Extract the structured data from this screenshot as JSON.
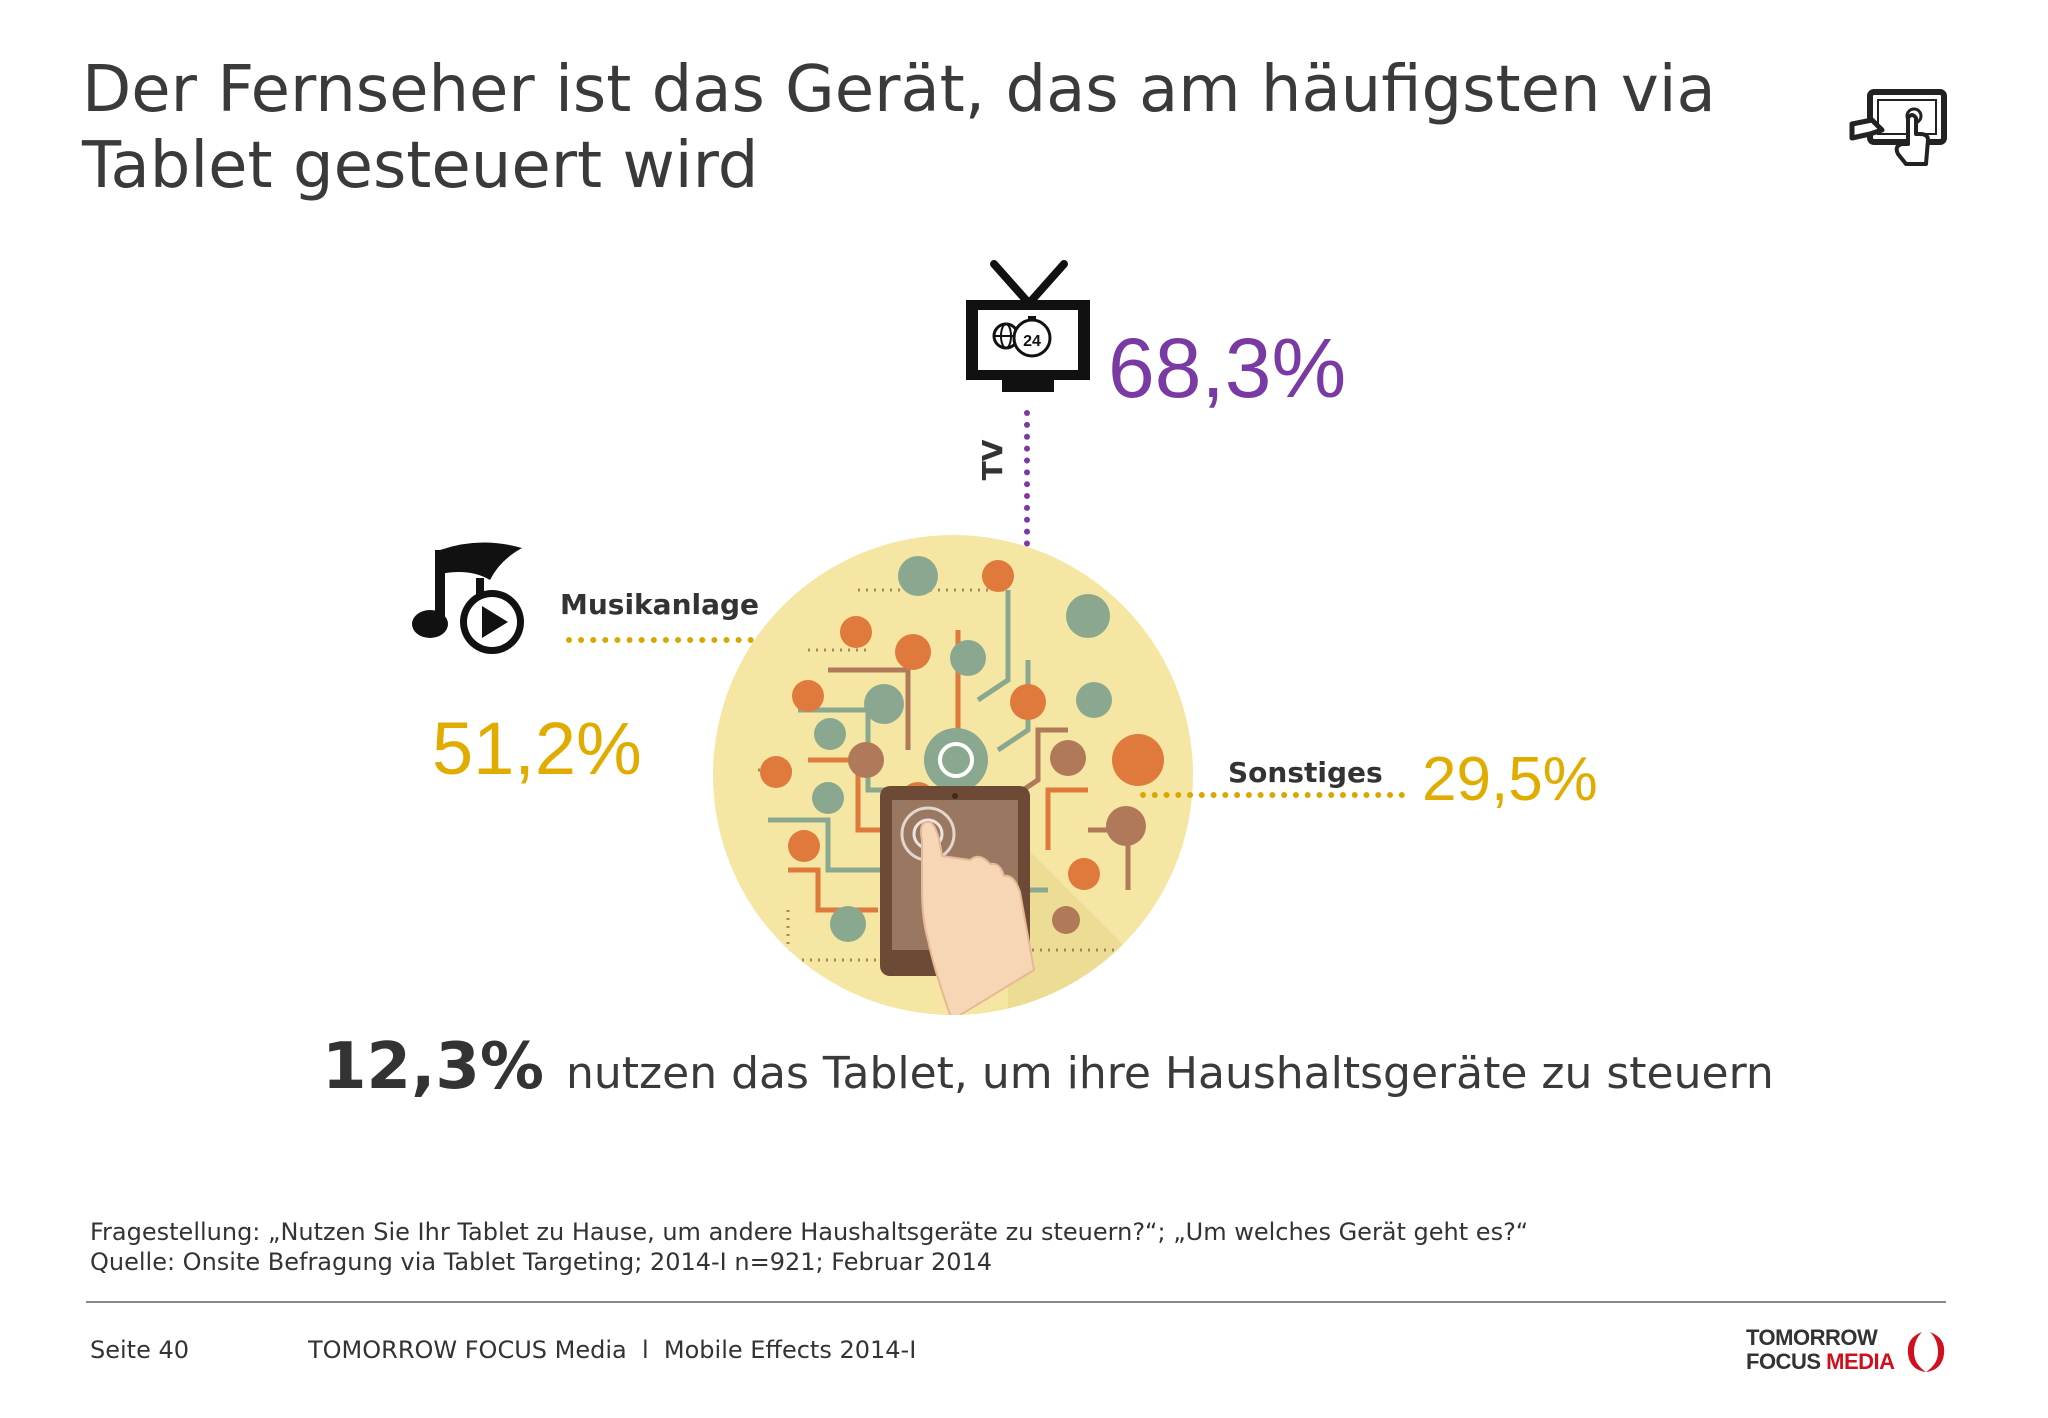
{
  "title": {
    "line1": "Der Fernseher ist das Gerät, das am häufigsten via",
    "line2": "Tablet gesteuert wird"
  },
  "devices": {
    "tv": {
      "label": "TV",
      "value": "68,3%",
      "icon": "tv-24h-icon",
      "color": "#7a3aa3"
    },
    "music": {
      "label": "Musikanlage",
      "value": "51,2%",
      "icon": "music-note-play-icon",
      "color": "#e0ac00"
    },
    "other": {
      "label": "Sonstiges",
      "value": "29,5%",
      "color": "#e0ac00"
    }
  },
  "tv_icon_badge": "24",
  "headline": {
    "value": "12,3%",
    "text": "nutzen das Tablet, um ihre Haushaltsgeräte zu steuern"
  },
  "notes": {
    "question": "Fragestellung: „Nutzen Sie Ihr Tablet zu Hause, um andere Haushaltsgeräte zu steuern?“; „Um welches Gerät geht es?“",
    "source": "Quelle: Onsite Befragung via Tablet Targeting; 2014-I n=921; Februar 2014"
  },
  "footer": {
    "page": "Seite 40",
    "text": "TOMORROW FOCUS Media  l  Mobile Effects 2014-I",
    "logo_line1": "TOMORROW",
    "logo_focus": "FOCUS",
    "logo_media": "MEDIA"
  }
}
